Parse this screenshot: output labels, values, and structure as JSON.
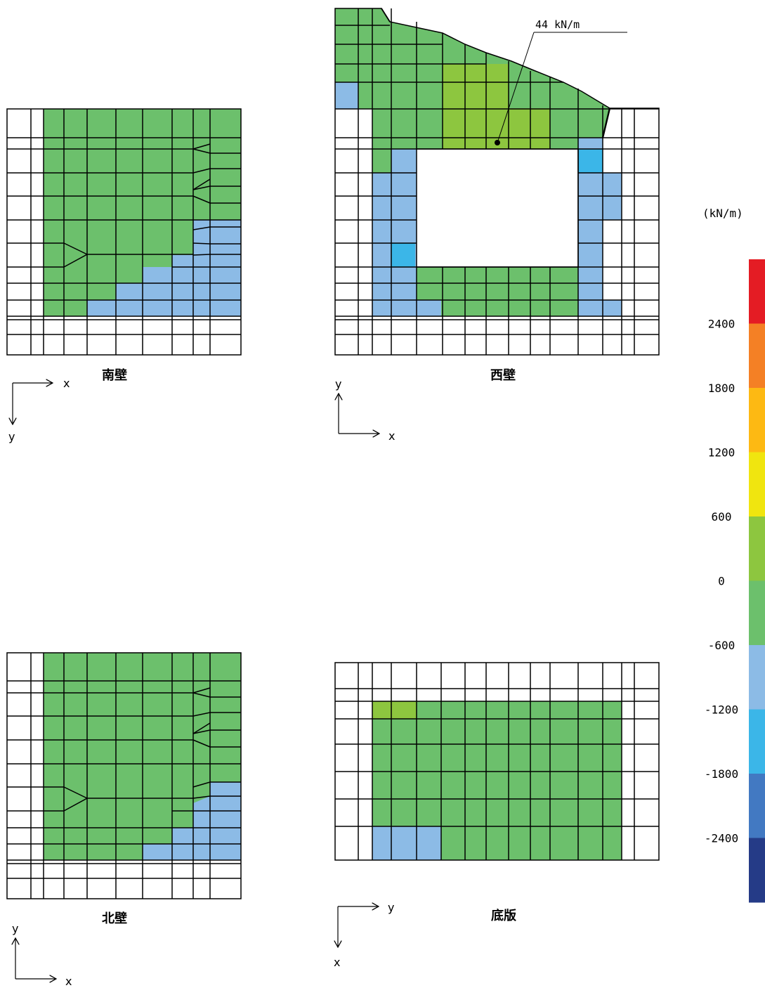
{
  "panels": {
    "south": {
      "title": "南壁",
      "axis_h": "x",
      "axis_v": "y"
    },
    "west": {
      "title": "西壁",
      "axis_h": "x",
      "axis_v": "y",
      "annotation": "44 kN/m"
    },
    "north": {
      "title": "北壁",
      "axis_h": "x",
      "axis_v": "y"
    },
    "bottom": {
      "title": "底版",
      "axis_h": "y",
      "axis_v": "x"
    }
  },
  "legend": {
    "unit": "(kN/m)",
    "ticks": [
      "2400",
      "1800",
      "1200",
      "600",
      "0",
      "-600",
      "-1200",
      "-1800",
      "-2400"
    ],
    "colors": [
      "#e41c24",
      "#f48025",
      "#fdb913",
      "#f0e50f",
      "#8dc63f",
      "#6cc06c",
      "#8cbbe6",
      "#3bb6e8",
      "#4279c2",
      "#253b87"
    ]
  }
}
